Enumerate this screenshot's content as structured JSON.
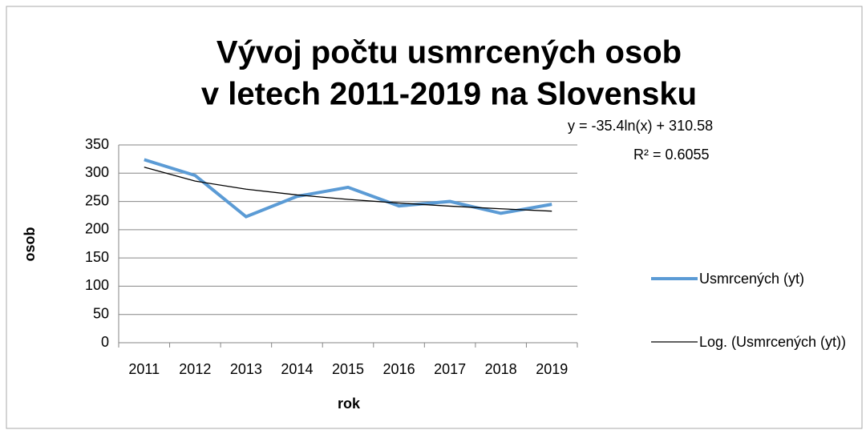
{
  "chart_data": {
    "type": "line",
    "title": [
      "Vývoj počtu usmrcených osob",
      "v letech 2011-2019 na Slovensku"
    ],
    "x_label": "rok",
    "y_label": "osob",
    "annotations": [
      "y = -35.4ln(x) + 310.58",
      "R² = 0.6055"
    ],
    "categories": [
      "2011",
      "2012",
      "2013",
      "2014",
      "2015",
      "2016",
      "2017",
      "2018",
      "2019"
    ],
    "series": [
      {
        "name": "Usmrcených (yt)",
        "color": "#5b9bd5",
        "values": [
          324,
          296,
          223,
          259,
          275,
          242,
          250,
          229,
          245
        ]
      },
      {
        "name": "Log. (Usmrcených (yt))",
        "color": "#000000",
        "values": [
          310.6,
          286.0,
          271.7,
          261.5,
          253.6,
          247.2,
          241.7,
          237.0,
          232.8
        ]
      }
    ],
    "ylim": [
      0,
      350
    ],
    "yticks": [
      0,
      50,
      100,
      150,
      200,
      250,
      300,
      350
    ],
    "grid": true,
    "legend": "right"
  }
}
